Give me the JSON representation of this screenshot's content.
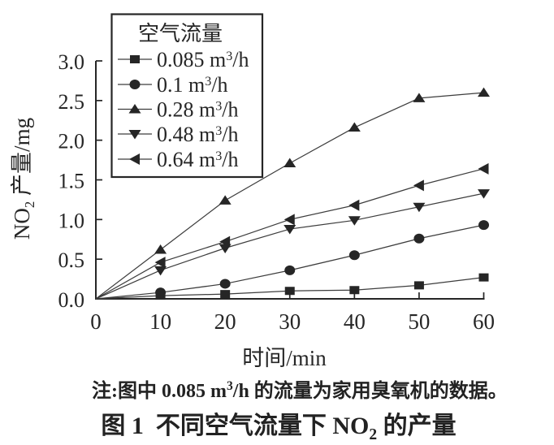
{
  "figure": {
    "note": "注:图中 0.085 m³/h 的流量为家用臭氧机的数据。",
    "caption": "图 1&&不同空气流量下 NO₂ 的产量"
  },
  "chart_data": {
    "type": "line",
    "title": "",
    "xlabel": "时间/min",
    "ylabel": "NO₂ 产量/mg",
    "xlim": [
      0,
      60
    ],
    "ylim": [
      0.0,
      3.0
    ],
    "x_ticks": [
      0,
      10,
      20,
      30,
      40,
      50,
      60
    ],
    "y_ticks": [
      0.0,
      0.5,
      1.0,
      1.5,
      2.0,
      2.5,
      3.0
    ],
    "grid": false,
    "legend_title": "空气流量",
    "legend_position": "top-left",
    "x": [
      0,
      10,
      20,
      30,
      40,
      50,
      60
    ],
    "series": [
      {
        "name": "0.085 m³/h",
        "marker": "square",
        "values": [
          0,
          0.04,
          0.06,
          0.1,
          0.11,
          0.17,
          0.27
        ]
      },
      {
        "name": "0.1 m³/h",
        "marker": "circle",
        "values": [
          0,
          0.08,
          0.19,
          0.36,
          0.55,
          0.76,
          0.93
        ]
      },
      {
        "name": "0.28 m³/h",
        "marker": "triangle-up",
        "values": [
          0,
          0.62,
          1.24,
          1.71,
          2.16,
          2.53,
          2.6
        ]
      },
      {
        "name": "0.48 m³/h",
        "marker": "triangle-down",
        "values": [
          0,
          0.36,
          0.64,
          0.88,
          0.99,
          1.16,
          1.33
        ]
      },
      {
        "name": "0.64 m³/h",
        "marker": "triangle-left",
        "values": [
          0,
          0.46,
          0.72,
          1.0,
          1.18,
          1.43,
          1.64
        ]
      }
    ]
  }
}
